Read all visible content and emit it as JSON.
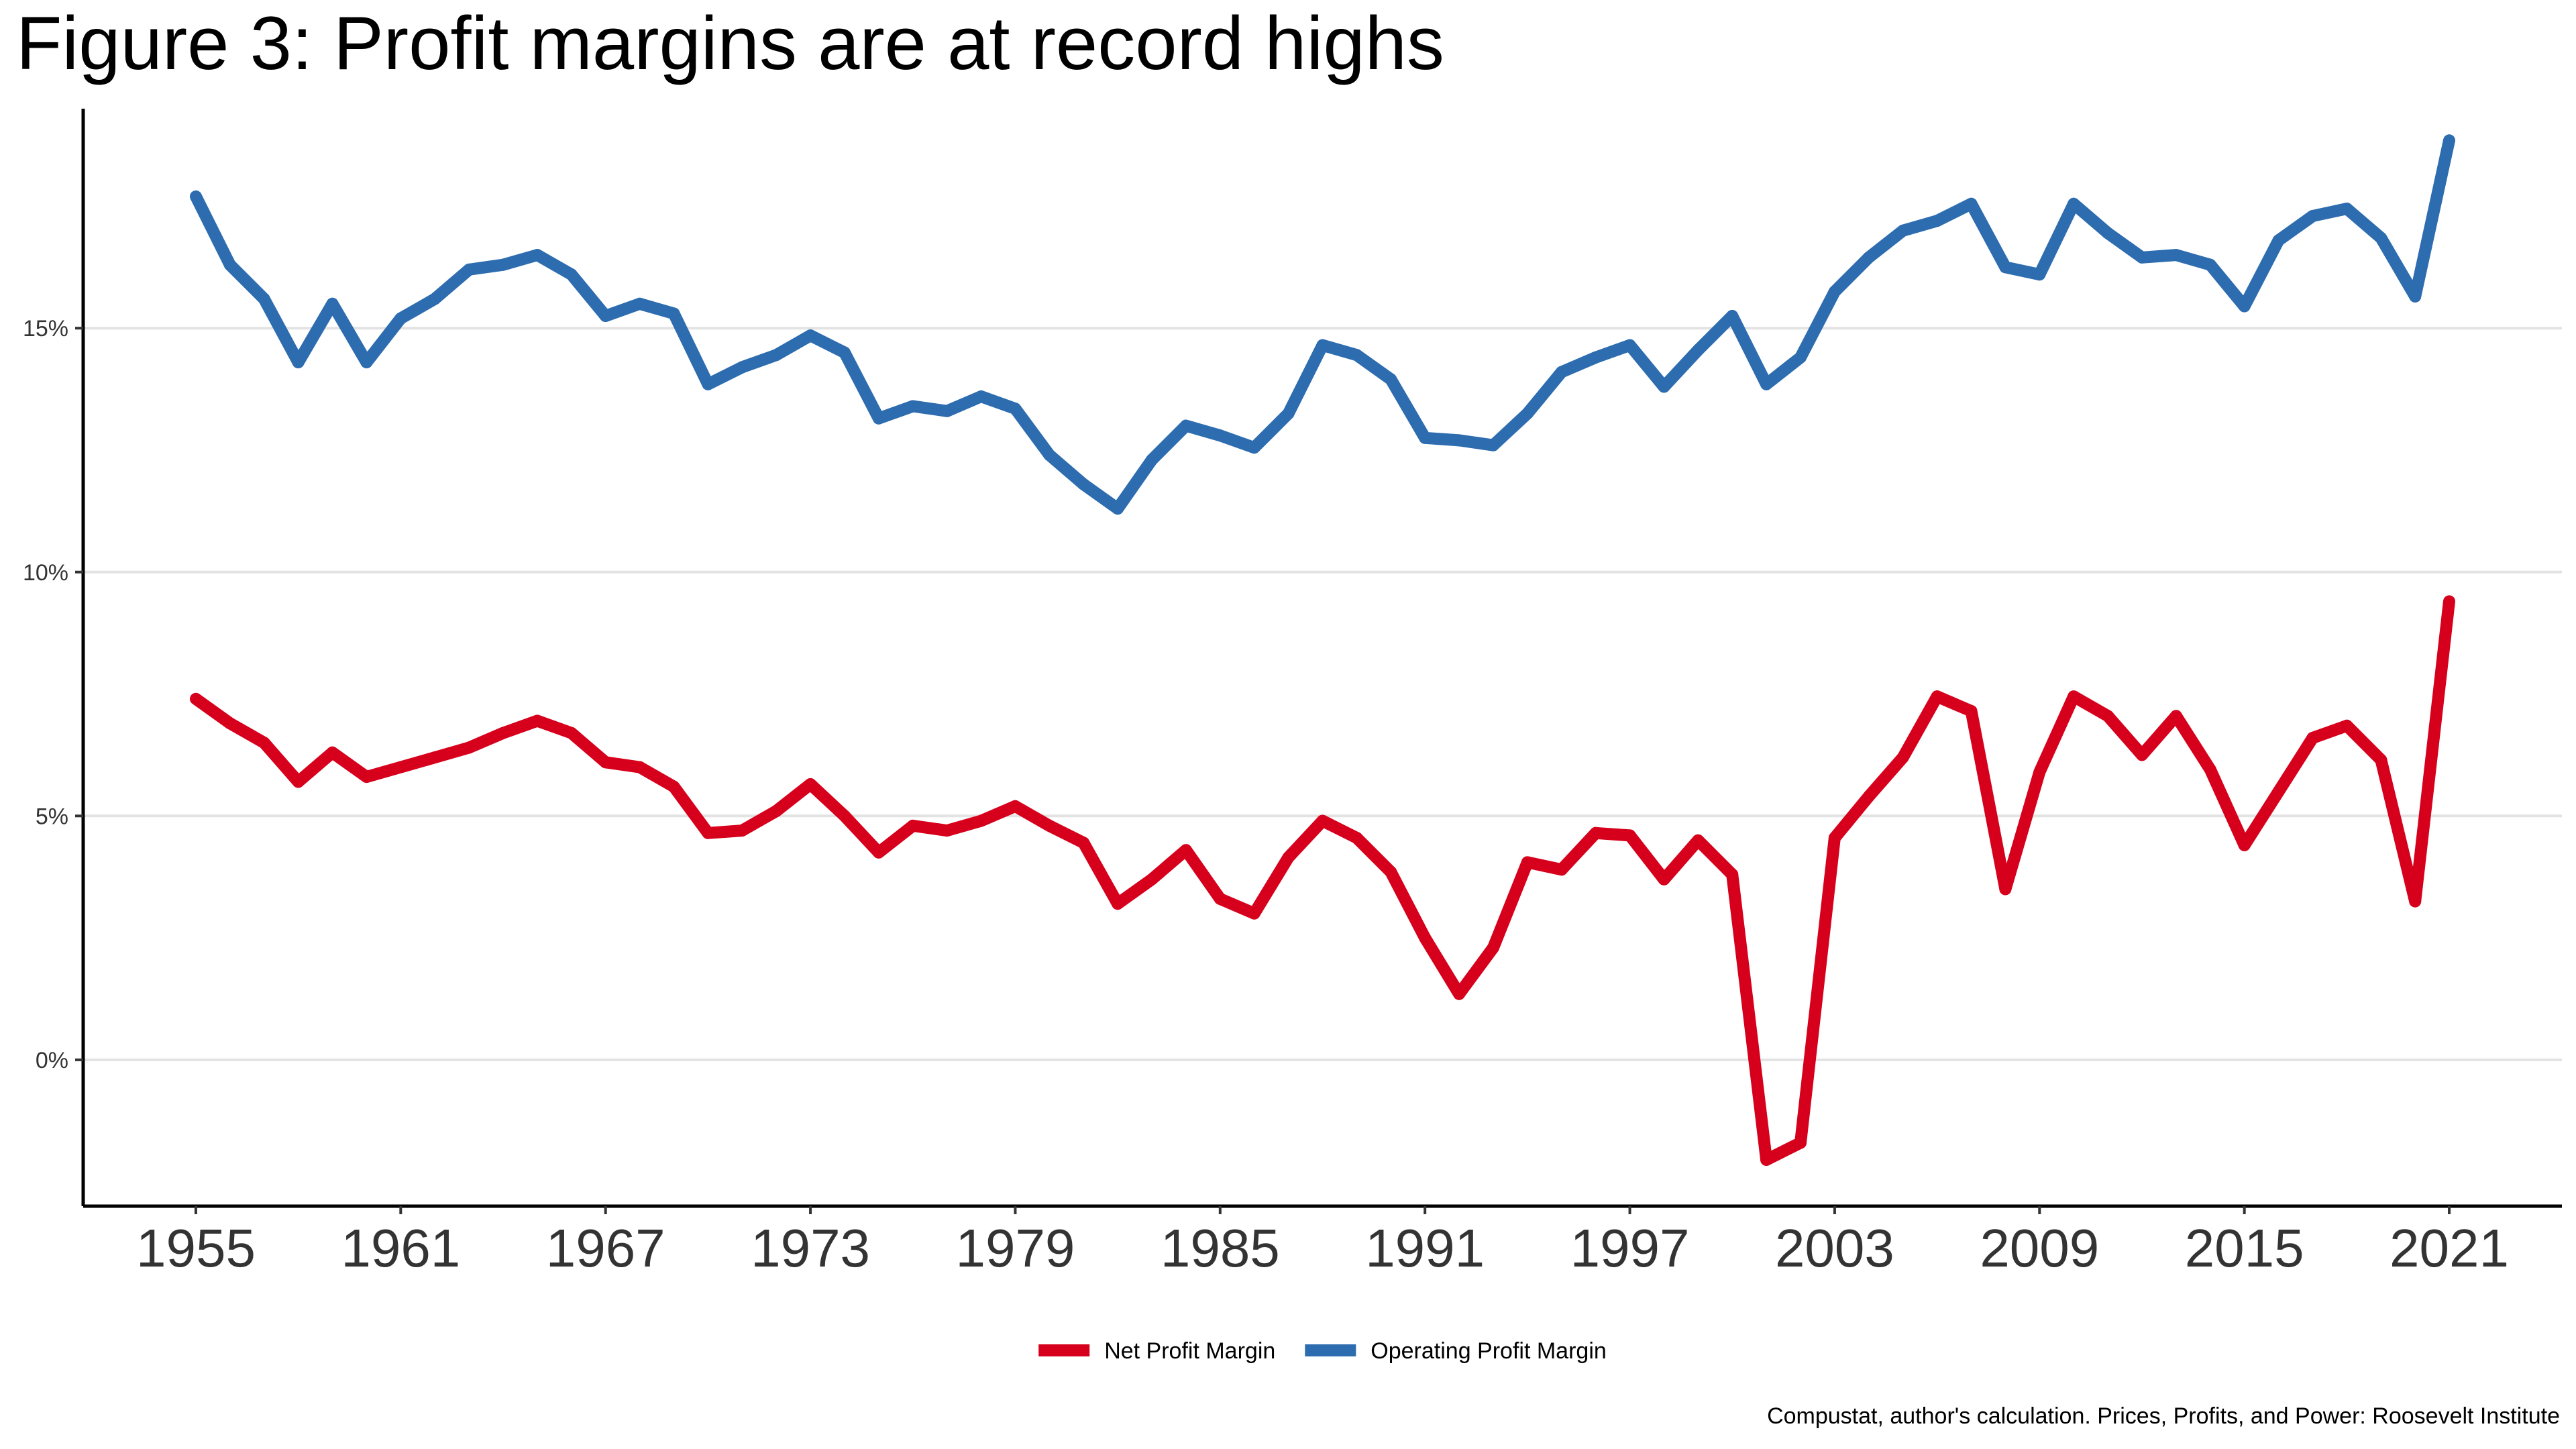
{
  "chart_data": {
    "type": "line",
    "title": "Figure 3: Profit margins are at record highs",
    "caption": "Compustat, author's calculation. Prices, Profits, and Power: Roosevelt Institute",
    "xlabel": "",
    "ylabel": "",
    "x": [
      1955,
      1956,
      1957,
      1958,
      1959,
      1960,
      1961,
      1962,
      1963,
      1964,
      1965,
      1966,
      1967,
      1968,
      1969,
      1970,
      1971,
      1972,
      1973,
      1974,
      1975,
      1976,
      1977,
      1978,
      1979,
      1980,
      1981,
      1982,
      1983,
      1984,
      1985,
      1986,
      1987,
      1988,
      1989,
      1990,
      1991,
      1992,
      1993,
      1994,
      1995,
      1996,
      1997,
      1998,
      1999,
      2000,
      2001,
      2002,
      2003,
      2004,
      2005,
      2006,
      2007,
      2008,
      2009,
      2010,
      2011,
      2012,
      2013,
      2014,
      2015,
      2016,
      2017,
      2018,
      2019,
      2020,
      2021
    ],
    "xlim": [
      1951.7,
      2024.3
    ],
    "ylim": [
      -3.0,
      19.5
    ],
    "x_ticks": [
      1955,
      1961,
      1967,
      1973,
      1979,
      1985,
      1991,
      1997,
      2003,
      2009,
      2015,
      2021
    ],
    "x_tick_labels": [
      "1955",
      "1961",
      "1967",
      "1973",
      "1979",
      "1985",
      "1991",
      "1997",
      "2003",
      "2009",
      "2015",
      "2021"
    ],
    "y_ticks": [
      0,
      5,
      10,
      15
    ],
    "y_tick_labels": [
      "0%",
      "5%",
      "10%",
      "15%"
    ],
    "grid": "horizontal",
    "legend_position": "bottom",
    "series": [
      {
        "name": "Net Profit Margin",
        "color": "#D7001C",
        "values": [
          7.4,
          6.9,
          6.5,
          5.7,
          6.3,
          5.8,
          6.0,
          6.2,
          6.4,
          6.7,
          6.95,
          6.7,
          6.1,
          6.0,
          5.6,
          4.65,
          4.7,
          5.1,
          5.65,
          5.0,
          4.25,
          4.8,
          4.7,
          4.9,
          5.2,
          4.8,
          4.45,
          3.2,
          3.7,
          4.3,
          3.3,
          3.0,
          4.15,
          4.9,
          4.55,
          3.85,
          2.5,
          1.35,
          2.3,
          4.05,
          3.9,
          4.65,
          4.6,
          3.7,
          4.5,
          3.8,
          -2.05,
          -1.7,
          4.55,
          5.4,
          6.2,
          7.45,
          7.15,
          3.5,
          5.9,
          7.45,
          7.05,
          6.25,
          7.05,
          5.95,
          4.4,
          5.5,
          6.6,
          6.85,
          6.15,
          3.25,
          9.4
        ]
      },
      {
        "name": "Operating Profit Margin",
        "color": "#2C6CAF",
        "values": [
          17.7,
          16.3,
          15.6,
          14.3,
          15.5,
          14.3,
          15.2,
          15.6,
          16.2,
          16.3,
          16.5,
          16.1,
          15.25,
          15.5,
          15.3,
          13.85,
          14.2,
          14.45,
          14.85,
          14.5,
          13.15,
          13.4,
          13.3,
          13.6,
          13.35,
          12.4,
          11.8,
          11.3,
          12.3,
          13.0,
          12.8,
          12.55,
          13.25,
          14.65,
          14.45,
          13.95,
          12.75,
          12.7,
          12.6,
          13.25,
          14.1,
          14.4,
          14.65,
          13.8,
          14.55,
          15.25,
          13.85,
          14.4,
          15.75,
          16.45,
          17.0,
          17.2,
          17.55,
          16.25,
          16.1,
          17.55,
          16.95,
          16.45,
          16.5,
          16.3,
          15.45,
          16.8,
          17.3,
          17.45,
          16.85,
          15.65,
          18.85
        ]
      }
    ]
  }
}
